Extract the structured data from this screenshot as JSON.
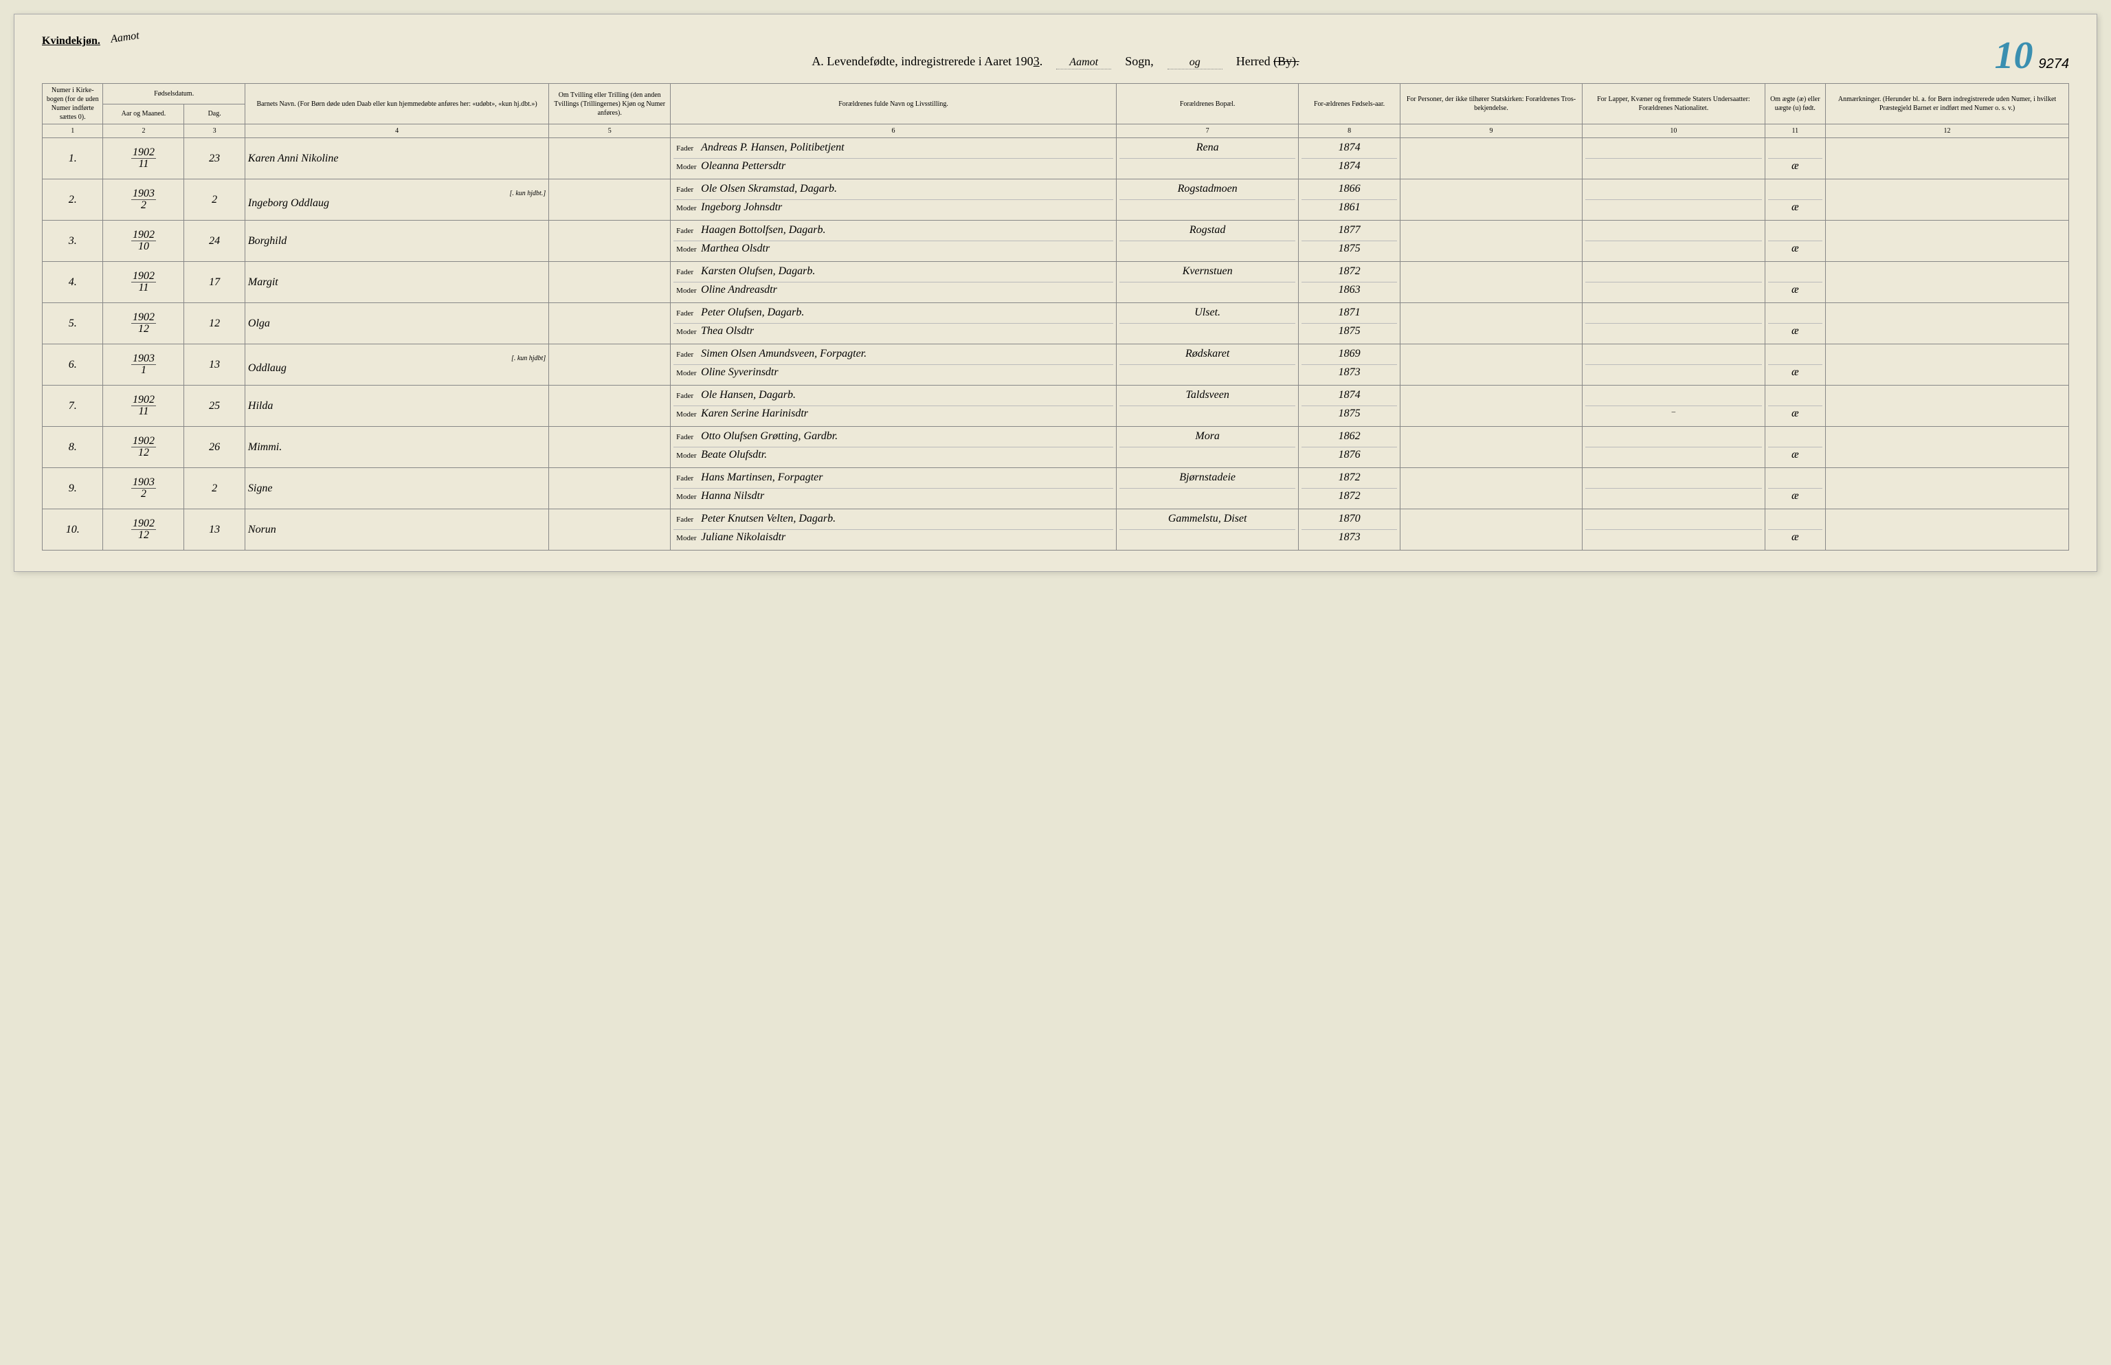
{
  "header": {
    "gender": "Kvindekjøn.",
    "script_annotation": "Aamot",
    "title_prefix": "A.  Levendefødte, indregistrerede i Aaret 190",
    "year_suffix": "3",
    "sogn_fill": "Aamot",
    "sogn_label": "Sogn,",
    "og_fill": "og",
    "herred_label": "Herred",
    "by_struck": "(By).",
    "big_page_num": "10",
    "small_page_num": "9274"
  },
  "columns": {
    "c1": "Numer i Kirke-bogen (for de uden Numer indførte sættes 0).",
    "c2_top": "Fødselsdatum.",
    "c2a": "Aar og Maaned.",
    "c2b": "Dag.",
    "c4": "Barnets Navn.\n(For Børn døde uden Daab eller kun hjemmedøbte anføres her: «udøbt», «kun hj.dbt.»)",
    "c5": "Om Tvilling eller Trilling (den anden Tvillings (Trillingernes) Kjøn og Numer anføres).",
    "c6": "Forældrenes fulde Navn og Livsstilling.",
    "c7": "Forældrenes Bopæl.",
    "c8": "For-ældrenes Fødsels-aar.",
    "c9": "For Personer, der ikke tilhører Statskirken: Forældrenes Tros-bekjendelse.",
    "c10": "For Lapper, Kvæner og fremmede Staters Undersaatter: Forældrenes Nationalitet.",
    "c11": "Om ægte (æ) eller uægte (u) født.",
    "c12": "Anmærkninger.\n(Herunder bl. a. for Børn indregistrerede uden Numer, i hvilket Præstegjeld Barnet er indført med Numer o. s. v.)",
    "nums": [
      "1",
      "2",
      "3",
      "4",
      "5",
      "6",
      "7",
      "8",
      "9",
      "10",
      "11",
      "12"
    ],
    "fader": "Fader",
    "moder": "Moder"
  },
  "rows": [
    {
      "n": "1.",
      "year": "1902",
      "month": "11",
      "day": "23",
      "child": "Karen Anni Nikoline",
      "child_note": "",
      "father": "Andreas P. Hansen, Politibetjent",
      "mother": "Oleanna Pettersdtr",
      "bopal": "Rena",
      "fy": "1874",
      "my": "1874",
      "leg": "æ"
    },
    {
      "n": "2.",
      "year": "1903",
      "month": "2",
      "day": "2",
      "child": "Ingeborg Oddlaug",
      "child_note": "[. kun hjdbt.]",
      "father": "Ole Olsen Skramstad, Dagarb.",
      "mother": "Ingeborg Johnsdtr",
      "bopal": "Rogstadmoen",
      "fy": "1866",
      "my": "1861",
      "leg": "æ"
    },
    {
      "n": "3.",
      "year": "1902",
      "month": "10",
      "day": "24",
      "child": "Borghild",
      "child_note": "",
      "father": "Haagen Bottolfsen, Dagarb.",
      "mother": "Marthea Olsdtr",
      "bopal": "Rogstad",
      "fy": "1877",
      "my": "1875",
      "leg": "æ"
    },
    {
      "n": "4.",
      "year": "1902",
      "month": "11",
      "day": "17",
      "child": "Margit",
      "child_note": "",
      "father": "Karsten Olufsen, Dagarb.",
      "mother": "Oline Andreasdtr",
      "bopal": "Kvernstuen",
      "fy": "1872",
      "my": "1863",
      "leg": "æ"
    },
    {
      "n": "5.",
      "year": "1902",
      "month": "12",
      "day": "12",
      "child": "Olga",
      "child_note": "",
      "father": "Peter Olufsen, Dagarb.",
      "mother": "Thea Olsdtr",
      "bopal": "Ulset.",
      "fy": "1871",
      "my": "1875",
      "leg": "æ"
    },
    {
      "n": "6.",
      "year": "1903",
      "month": "1",
      "day": "13",
      "child": "Oddlaug",
      "child_note": "[. kun hjdbt]",
      "father": "Simen Olsen Amundsveen, Forpagter.",
      "mother": "Oline Syverinsdtr",
      "bopal": "Rødskaret",
      "fy": "1869",
      "my": "1873",
      "leg": "æ"
    },
    {
      "n": "7.",
      "year": "1902",
      "month": "11",
      "day": "25",
      "child": "Hilda",
      "child_note": "",
      "father": "Ole Hansen, Dagarb.",
      "mother": "Karen Serine Harinisdtr",
      "bopal": "Taldsveen",
      "fy": "1874",
      "my": "1875",
      "leg": "æ",
      "c10": "–"
    },
    {
      "n": "8.",
      "year": "1902",
      "month": "12",
      "day": "26",
      "child": "Mimmi.",
      "child_note": "",
      "father": "Otto Olufsen Grøtting, Gardbr.",
      "mother": "Beate Olufsdtr.",
      "bopal": "Mora",
      "fy": "1862",
      "my": "1876",
      "leg": "æ"
    },
    {
      "n": "9.",
      "year": "1903",
      "month": "2",
      "day": "2",
      "child": "Signe",
      "child_note": "",
      "father": "Hans Martinsen, Forpagter",
      "mother": "Hanna Nilsdtr",
      "bopal": "Bjørnstadeie",
      "fy": "1872",
      "my": "1872",
      "leg": "æ"
    },
    {
      "n": "10.",
      "year": "1902",
      "month": "12",
      "day": "13",
      "child": "Norun",
      "child_note": "",
      "father": "Peter Knutsen Velten, Dagarb.",
      "mother": "Juliane Nikolaisdtr",
      "bopal": "Gammelstu, Diset",
      "fy": "1870",
      "my": "1873",
      "leg": "æ"
    }
  ]
}
